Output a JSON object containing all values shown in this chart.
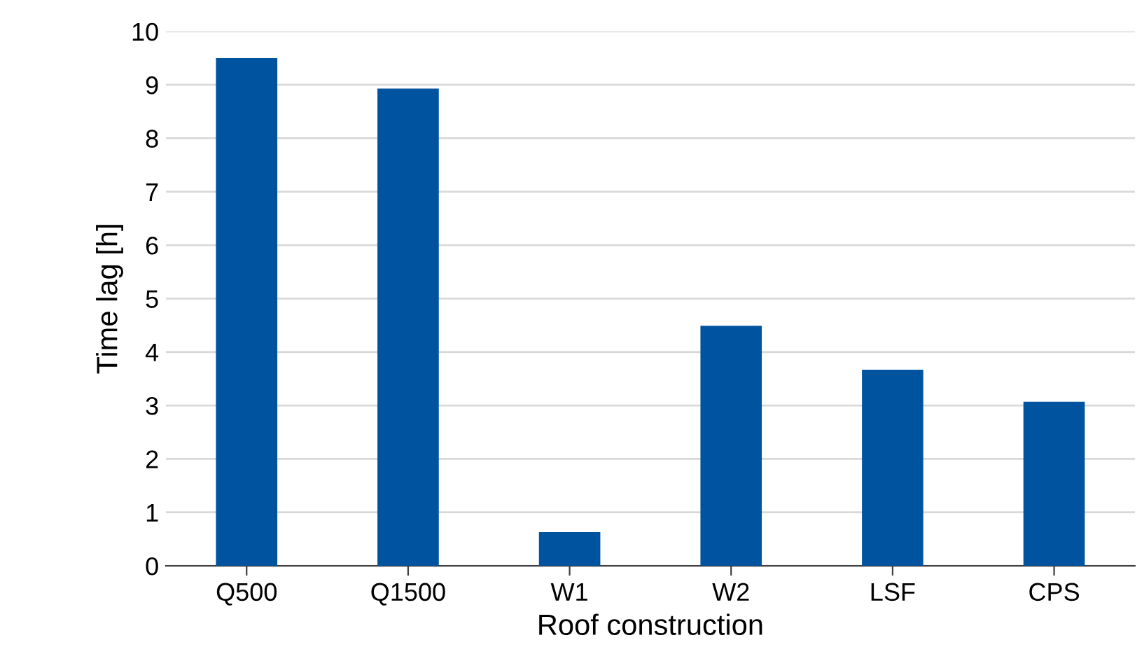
{
  "chart_data": {
    "type": "bar",
    "xlabel": "Roof construction",
    "ylabel": "Time lag [h]",
    "categories": [
      "Q500",
      "Q1500",
      "W1",
      "W2",
      "LSF",
      "CPS"
    ],
    "values": [
      9.5,
      8.93,
      0.63,
      4.49,
      3.67,
      3.07
    ],
    "color": "#00539f",
    "ylim": [
      0,
      10
    ],
    "yticks": [
      0,
      1,
      2,
      3,
      4,
      5,
      6,
      7,
      8,
      9,
      10
    ],
    "grid": "y",
    "legend": false
  }
}
